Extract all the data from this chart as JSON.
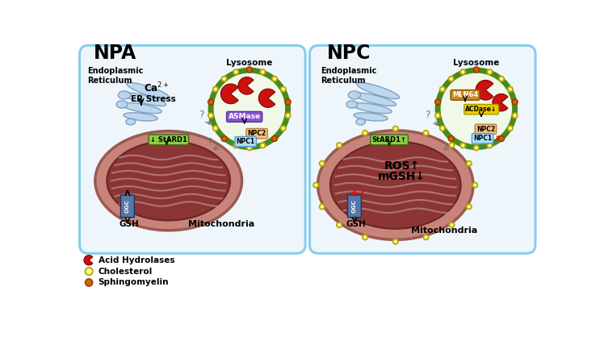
{
  "background_color": "#ffffff",
  "panel_bg": "#eef6fc",
  "panel_border": "#87ceeb",
  "npa_title": "NPA",
  "npc_title": "NPC",
  "lysosome_border": "#4a8a1a",
  "lysosome_interior": "#f0f8e8",
  "mito_outer_color": "#c8847a",
  "mito_inner_color": "#8b3535",
  "er_fill": "#b8d4ee",
  "er_stroke": "#7799bb",
  "cholesterol_fill": "#ffff99",
  "cholesterol_edge": "#bbaa00",
  "sphingomyelin_fill": "#cc6600",
  "sphingomyelin_edge": "#993300",
  "acid_hydrolase_fill": "#cc1111",
  "stard1_fill": "#88cc44",
  "stard1_edge": "#446611",
  "asmase_fill": "#8855cc",
  "asmase_edge": "#5533aa",
  "npc2_fill": "#f0c080",
  "npc2_edge": "#c08040",
  "npc1_fill": "#aaddff",
  "npc1_edge": "#5599cc",
  "ogc_fill": "#5577aa",
  "ogc_edge": "#223355",
  "mln64_fill": "#cc8822",
  "mln64_edge": "#885500",
  "acdase_fill": "#eecc00",
  "acdase_edge": "#aa9900",
  "legend_acid_hydrolases": "Acid Hydrolases",
  "legend_cholesterol": "Cholesterol",
  "legend_sphingomyelin": "Sphingomyelin",
  "text_er": "Endoplasmic\nReticulum",
  "text_ca": "Ca$^{2+}$",
  "text_er_stress": "ER Stress",
  "text_lysosome": "Lysosome",
  "text_mito": "Mitochondria",
  "text_gsh": "GSH",
  "text_stard1_npa": "↓ StARD1",
  "text_stard1_npc": "StARD1↑",
  "text_asmase": "ASMase",
  "text_npc2": "NPC2",
  "text_npc1": "NPC1",
  "text_ogc": "OGC",
  "text_ros": "ROS↑",
  "text_mgsh": "mGSH↓",
  "text_mln64": "MLN64",
  "text_acdase": "ACDase↓"
}
